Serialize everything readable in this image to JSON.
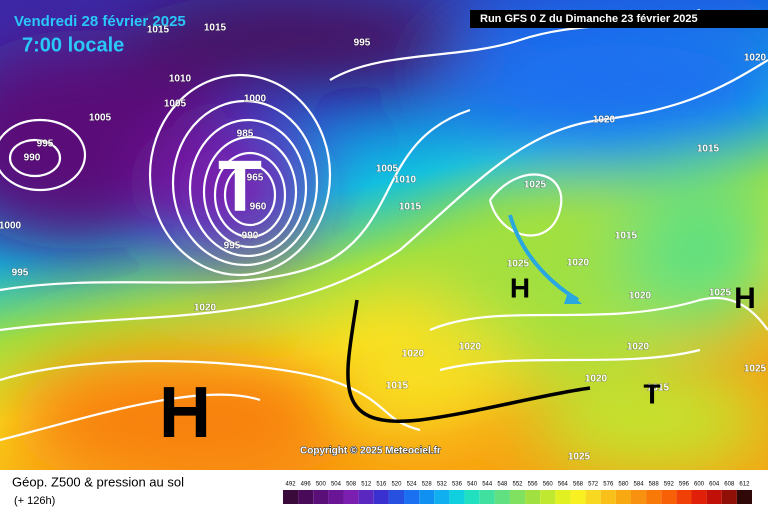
{
  "header": {
    "date": "Vendredi 28 février 2025",
    "time": "7:00 locale",
    "run": "Run GFS 0 Z du Dimanche 23 février 2025"
  },
  "isobar_labels": [
    "1015",
    "1015",
    "995",
    "1010",
    "1005",
    "1000",
    "1005",
    "985",
    "995",
    "990",
    "965",
    "960",
    "990",
    "995",
    "1000",
    "995",
    "1005",
    "1010",
    "1015",
    "1020",
    "1020",
    "1015",
    "1025",
    "1015",
    "1020",
    "1025",
    "1020",
    "1025",
    "1020",
    "1020",
    "1020",
    "1015",
    "1020",
    "1025",
    "1015",
    "1020",
    "1025"
  ],
  "pressure_centers": [
    "H",
    "H",
    "H",
    "T",
    "T"
  ],
  "copyright": "Copyright © 2025 Meteociel.fr",
  "footer": {
    "title": "Géop. Z500 & pression au sol",
    "lead": "(+ 126h)"
  },
  "colorbar": {
    "ticks": [
      492,
      496,
      500,
      504,
      508,
      512,
      516,
      520,
      524,
      528,
      532,
      536,
      540,
      544,
      548,
      552,
      556,
      560,
      564,
      568,
      572,
      576,
      580,
      584,
      588,
      592,
      596,
      600,
      604,
      608,
      612
    ],
    "colors": [
      "#3a0a3a",
      "#4a0a5a",
      "#5a0f78",
      "#6a1595",
      "#7a1fb0",
      "#5a28c0",
      "#3a30d0",
      "#2850e0",
      "#1a70f0",
      "#1090f0",
      "#10b0f0",
      "#10d0e0",
      "#20e0c0",
      "#40e0a0",
      "#60e080",
      "#80e060",
      "#a0e040",
      "#c0e830",
      "#e0f020",
      "#f8f020",
      "#f8d820",
      "#f8c018",
      "#f8a810",
      "#f89010",
      "#f87808",
      "#f86008",
      "#f04008",
      "#e02008",
      "#c01008",
      "#901008",
      "#300808"
    ]
  }
}
